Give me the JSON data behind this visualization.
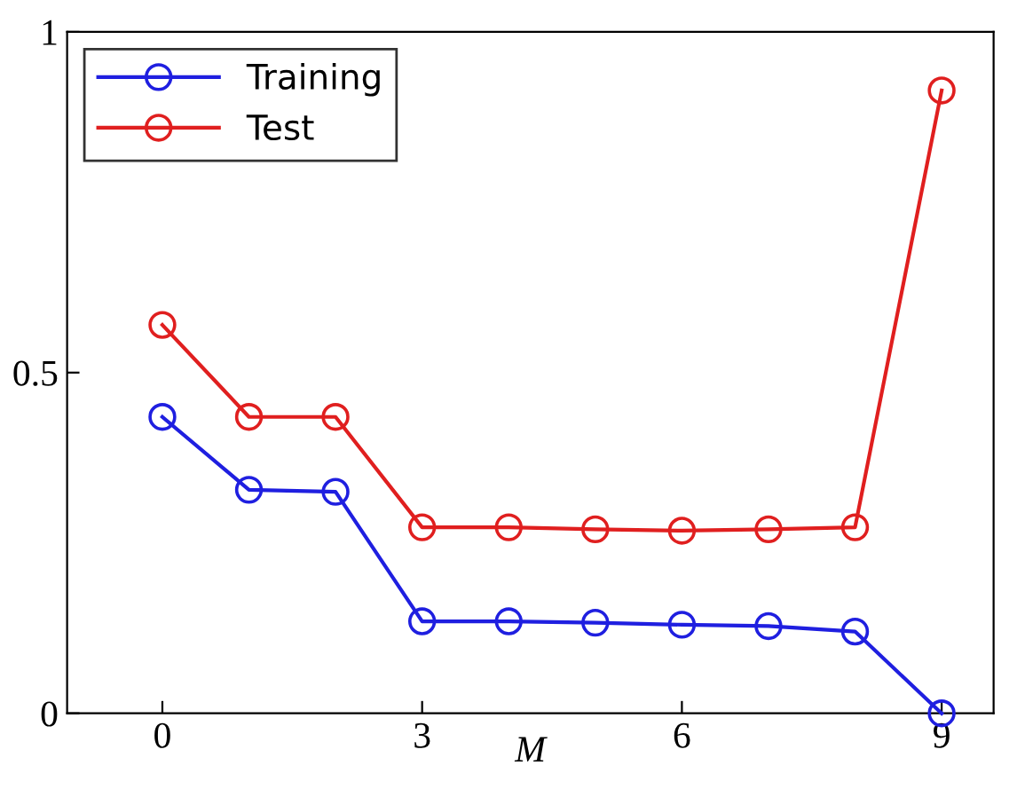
{
  "chart_data": {
    "type": "line",
    "xlabel": "M",
    "x": [
      0,
      1,
      2,
      3,
      4,
      5,
      6,
      7,
      8,
      9
    ],
    "series": [
      {
        "name": "Training",
        "color": "#1f1fe0",
        "values": [
          0.435,
          0.328,
          0.325,
          0.135,
          0.135,
          0.133,
          0.13,
          0.128,
          0.12,
          0
        ]
      },
      {
        "name": "Test",
        "color": "#e01f1f",
        "values": [
          0.57,
          0.435,
          0.435,
          0.273,
          0.273,
          0.27,
          0.268,
          0.27,
          0.273,
          0.914
        ]
      }
    ],
    "xlim": [
      -1.1,
      9.6
    ],
    "ylim": [
      0,
      1
    ],
    "xticks": [
      0,
      3,
      6,
      9
    ],
    "yticks": [
      0,
      0.5,
      1
    ],
    "grid": false,
    "legend": "top left",
    "marker": "circle",
    "line_style": "solid"
  }
}
